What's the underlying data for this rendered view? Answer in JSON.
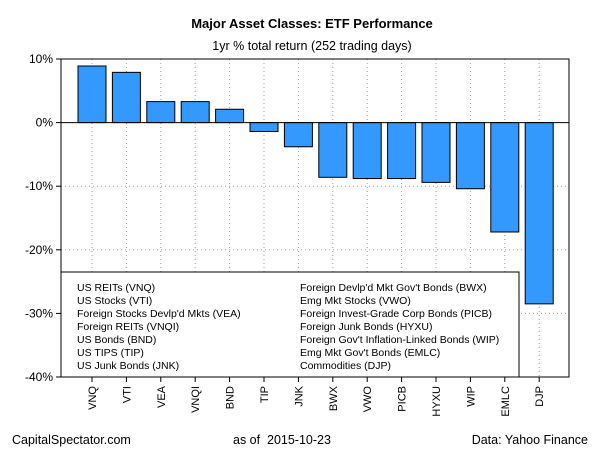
{
  "chart_data": {
    "type": "bar",
    "title": "Major Asset Classes: ETF Performance",
    "subtitle": "1yr % total return (252 trading days)",
    "categories": [
      "VNQ",
      "VTI",
      "VEA",
      "VNQI",
      "BND",
      "TIP",
      "JNK",
      "BWX",
      "VWO",
      "PICB",
      "HYXU",
      "WIP",
      "EMLC",
      "DJP"
    ],
    "values": [
      8.9,
      7.9,
      3.3,
      3.3,
      2.1,
      -1.4,
      -3.8,
      -8.6,
      -8.8,
      -8.8,
      -9.4,
      -10.4,
      -17.2,
      -28.5
    ],
    "ylim": [
      -40,
      10
    ],
    "yticks": [
      10,
      0,
      -10,
      -20,
      -30,
      -40
    ],
    "ytick_labels": [
      "10%",
      "0%",
      "-10%",
      "-20%",
      "-30%",
      "-40%"
    ],
    "grid": true,
    "bar_color": "#3399ff",
    "legend_left": [
      "US REITs (VNQ)",
      "US Stocks (VTI)",
      "Foreign Stocks Devlp'd Mkts (VEA)",
      "Foreign REITs (VNQI)",
      "US Bonds (BND)",
      "US TIPS (TIP)",
      "US Junk Bonds (JNK)"
    ],
    "legend_right": [
      "Foreign Devlp'd Mkt Gov't Bonds (BWX)",
      "Emg Mkt Stocks (VWO)",
      "Foreign Invest-Grade Corp Bonds (PICB)",
      "Foreign Junk Bonds (HYXU)",
      "Foreign Gov't Inflation-Linked Bonds (WIP)",
      "Emg Mkt Gov't Bonds (EMLC)",
      "Commodities (DJP)"
    ],
    "legend_placement": "bottom-left"
  },
  "footer": {
    "source_left": "CapitalSpectator.com",
    "as_of_label": "as of",
    "as_of_date": "2015-10-23",
    "source_right": "Data: Yahoo Finance"
  }
}
